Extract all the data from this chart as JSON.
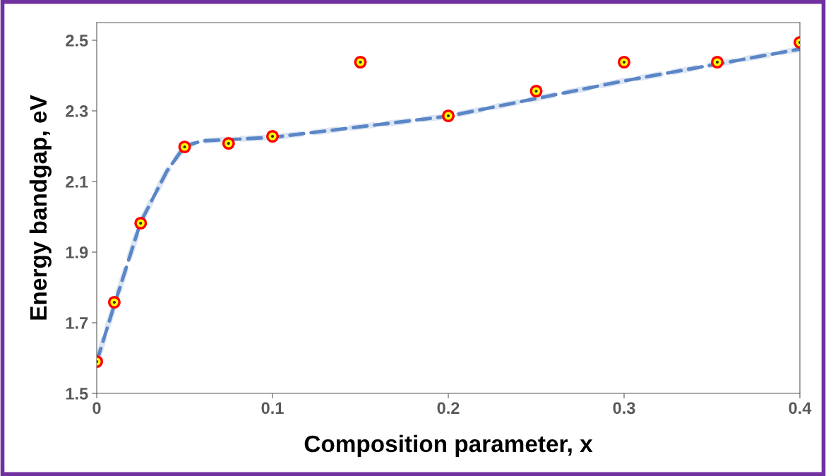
{
  "chart_data": {
    "type": "scatter",
    "xlabel": "Composition parameter, x",
    "ylabel": "Energy bandgap, eV",
    "series": [
      {
        "color": "#ff0000",
        "marker": "circle",
        "x": [
          0,
          0.01,
          0.025,
          0.05,
          0.075,
          0.1,
          0.15,
          0.2,
          0.25,
          0.3,
          0.353,
          0.4
        ],
        "values": [
          1.59,
          1.758,
          1.982,
          2.198,
          2.208,
          2.228,
          2.438,
          2.286,
          2.356,
          2.438,
          2.438,
          2.494
        ]
      },
      {
        "type": "line",
        "color": "#5b86c6",
        "line_style": "dashed",
        "marker": "none",
        "x": [
          0,
          0.01,
          0.025,
          0.04,
          0.05,
          0.06,
          0.1,
          0.2,
          0.3,
          0.4
        ],
        "values": [
          1.59,
          1.75,
          1.985,
          2.13,
          2.2,
          2.215,
          2.225,
          2.285,
          2.385,
          2.475
        ]
      }
    ],
    "xlim": [
      0,
      0.4
    ],
    "xticks": [
      0,
      0.1,
      0.2,
      0.3,
      0.4
    ],
    "ylim": [
      1.5,
      2.55
    ],
    "yticks": [
      1.5,
      1.7,
      1.9,
      2.1,
      2.3,
      2.5
    ],
    "grid": false,
    "legend": false
  }
}
